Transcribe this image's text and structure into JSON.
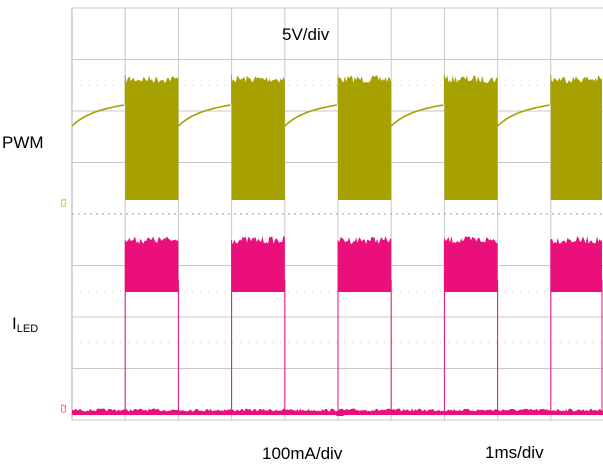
{
  "labels": {
    "volts_per_div": "5V/div",
    "pwm": "PWM",
    "iled_main": "I",
    "iled_sub": "LED",
    "current_per_div": "100mA/div",
    "time_per_div": "1ms/div",
    "ch1_marker": "C1",
    "ch2_marker": "C2"
  },
  "colors": {
    "pwm": "#a6a100",
    "iled": "#ea0f7b",
    "grid": "#c8c8c8",
    "frame": "#b0b0b0"
  },
  "chart_data": {
    "type": "line",
    "title": "",
    "x_units": "ms",
    "x_per_div": 1,
    "grid_on": true,
    "period_ms": 2,
    "duty_cycle": 0.5,
    "series": [
      {
        "name": "PWM",
        "scale": "5V/div",
        "high_divisions": 2.4,
        "high_noise_divisions": 0.18,
        "low_start_divisions": 1.9,
        "low_end_divisions": 2.3,
        "pulse_start_ms": [
          1.0,
          3.0,
          5.0,
          7.0,
          9.0
        ],
        "pulse_end_ms": [
          2.0,
          4.0,
          6.0,
          8.0,
          10.0
        ]
      },
      {
        "name": "ILED",
        "scale": "100mA/div",
        "high_divisions": 2.5,
        "high_noise_divisions": 0.18,
        "low_divisions": 0.0,
        "pulse_start_ms": [
          1.0,
          3.0,
          5.0,
          7.0,
          9.0
        ],
        "pulse_end_ms": [
          2.0,
          4.0,
          6.0,
          8.0,
          10.0
        ]
      }
    ]
  }
}
